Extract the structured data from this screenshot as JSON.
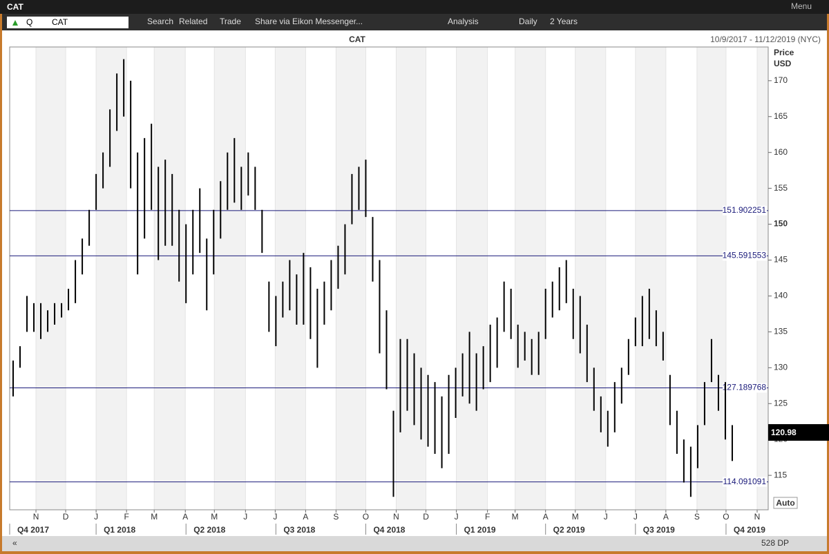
{
  "window": {
    "title": "CAT",
    "menu": "Menu"
  },
  "toolbar": {
    "ric_mode": "Q",
    "ric": "CAT",
    "search": "Search",
    "related": "Related",
    "trade": "Trade",
    "share": "Share via Eikon Messenger...",
    "analysis": "Analysis",
    "interval": "Daily",
    "range": "2 Years"
  },
  "chart_data": {
    "type": "hilo",
    "title": "CAT",
    "subtitle": "10/9/2017 - 11/12/2019 (NYC)",
    "y_label": [
      "Price",
      "USD"
    ],
    "color": "#000000",
    "low": [
      126,
      130,
      135,
      135,
      134,
      135,
      136,
      137,
      138,
      139,
      143,
      147,
      152,
      155,
      158,
      163,
      165,
      155,
      143,
      148,
      152,
      145,
      147,
      147,
      142,
      139,
      143,
      146,
      138,
      143,
      148,
      152,
      153,
      152,
      154,
      152,
      146,
      135,
      133,
      137,
      138,
      136,
      136,
      134,
      130,
      136,
      138,
      141,
      143,
      150,
      152,
      151,
      142,
      132,
      127,
      112,
      121,
      124,
      122,
      120,
      119,
      118,
      116,
      118,
      123,
      126,
      125,
      124,
      127,
      128,
      130,
      135,
      134,
      130,
      131,
      129,
      129,
      134,
      137,
      138,
      139,
      134,
      132,
      128,
      124,
      121,
      119,
      121,
      125,
      129,
      133,
      133,
      134,
      133,
      131,
      122,
      118,
      114,
      112,
      116,
      122,
      128,
      124,
      120,
      117
    ],
    "high": [
      131,
      133,
      140,
      139,
      139,
      138,
      139,
      139,
      141,
      145,
      148,
      152,
      157,
      160,
      166,
      171,
      173,
      170,
      160,
      162,
      164,
      158,
      159,
      157,
      152,
      150,
      152,
      155,
      148,
      152,
      156,
      160,
      162,
      158,
      160,
      158,
      152,
      142,
      140,
      142,
      145,
      143,
      146,
      144,
      141,
      142,
      145,
      147,
      150,
      157,
      158,
      159,
      151,
      145,
      138,
      124,
      134,
      134,
      132,
      130,
      129,
      128,
      126,
      129,
      130,
      132,
      135,
      132,
      133,
      136,
      137,
      142,
      141,
      136,
      135,
      134,
      135,
      141,
      142,
      144,
      145,
      141,
      140,
      136,
      130,
      126,
      124,
      128,
      130,
      134,
      137,
      140,
      141,
      138,
      135,
      129,
      124,
      120,
      119,
      122,
      128,
      134,
      129,
      128,
      122
    ],
    "xlim": [
      -0.5,
      109.2
    ],
    "ylim": [
      110.2,
      174.7
    ],
    "yticks": [
      115,
      120,
      125,
      130,
      135,
      140,
      145,
      150,
      155,
      160,
      165,
      170
    ],
    "ytick_bold": 150,
    "xticks": [
      {
        "value": 3.3,
        "label": "N"
      },
      {
        "value": 7.6,
        "label": "D"
      },
      {
        "value": 12.0,
        "label": "J"
      },
      {
        "value": 16.4,
        "label": "F"
      },
      {
        "value": 20.4,
        "label": "M"
      },
      {
        "value": 24.9,
        "label": "A"
      },
      {
        "value": 29.1,
        "label": "M"
      },
      {
        "value": 33.6,
        "label": "J"
      },
      {
        "value": 37.9,
        "label": "J"
      },
      {
        "value": 42.3,
        "label": "A"
      },
      {
        "value": 46.7,
        "label": "S"
      },
      {
        "value": 51.0,
        "label": "O"
      },
      {
        "value": 55.4,
        "label": "N"
      },
      {
        "value": 59.7,
        "label": "D"
      },
      {
        "value": 64.1,
        "label": "J"
      },
      {
        "value": 68.6,
        "label": "F"
      },
      {
        "value": 72.6,
        "label": "M"
      },
      {
        "value": 77.0,
        "label": "A"
      },
      {
        "value": 81.3,
        "label": "M"
      },
      {
        "value": 85.7,
        "label": "J"
      },
      {
        "value": 90.0,
        "label": "J"
      },
      {
        "value": 94.4,
        "label": "A"
      },
      {
        "value": 98.9,
        "label": "S"
      },
      {
        "value": 103.1,
        "label": "O"
      },
      {
        "value": 107.6,
        "label": "N"
      }
    ],
    "quarters": [
      {
        "value": -0.5,
        "label": "Q4 2017"
      },
      {
        "value": 12.0,
        "label": "Q1 2018"
      },
      {
        "value": 25.0,
        "label": "Q2 2018"
      },
      {
        "value": 38.0,
        "label": "Q3 2018"
      },
      {
        "value": 51.0,
        "label": "Q4 2018"
      },
      {
        "value": 64.1,
        "label": "Q1 2019"
      },
      {
        "value": 77.0,
        "label": "Q2 2019"
      },
      {
        "value": 90.0,
        "label": "Q3 2019"
      },
      {
        "value": 103.1,
        "label": "Q4 2019"
      }
    ],
    "hlines": [
      151.902251,
      145.591553,
      127.189768,
      114.091091
    ],
    "hline_color": "#1a1a7a",
    "last_price": 120.98,
    "scale_mode": "Auto",
    "points": "528 DP"
  }
}
